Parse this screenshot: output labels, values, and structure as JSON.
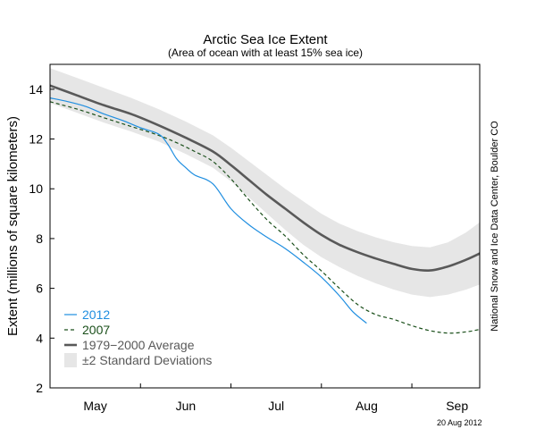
{
  "chart_data": {
    "type": "line",
    "title": "Arctic Sea Ice Extent",
    "subtitle": "(Area of ocean with at least 15% sea ice)",
    "ylabel": "Extent (millions of square kilometers)",
    "xlabel": "",
    "ylim": [
      2,
      15
    ],
    "yticks": [
      2,
      4,
      6,
      8,
      10,
      12,
      14
    ],
    "xlim": [
      0,
      4.75
    ],
    "xticks": [
      {
        "label": "May",
        "x": 0.5
      },
      {
        "label": "Jun",
        "x": 1.5
      },
      {
        "label": "Jul",
        "x": 2.5
      },
      {
        "label": "Aug",
        "x": 3.5
      },
      {
        "label": "Sep",
        "x": 4.5
      }
    ],
    "series": [
      {
        "name": "2012",
        "color": "#1f8ee0",
        "style": "solid",
        "x": [
          0.0,
          0.2,
          0.4,
          0.6,
          0.8,
          1.0,
          1.2,
          1.3,
          1.4,
          1.5,
          1.6,
          1.8,
          2.0,
          2.2,
          2.4,
          2.6,
          2.8,
          3.0,
          3.2,
          3.35,
          3.5
        ],
        "y": [
          13.65,
          13.5,
          13.3,
          13.0,
          12.75,
          12.45,
          12.2,
          11.8,
          11.2,
          10.85,
          10.55,
          10.2,
          9.2,
          8.55,
          8.05,
          7.6,
          7.05,
          6.45,
          5.7,
          5.05,
          4.6
        ]
      },
      {
        "name": "2007",
        "color": "#1a4f1a",
        "style": "dashed",
        "x": [
          0.0,
          0.3,
          0.6,
          0.9,
          1.2,
          1.4,
          1.6,
          1.8,
          2.0,
          2.2,
          2.4,
          2.6,
          2.8,
          3.0,
          3.2,
          3.4,
          3.6,
          3.8,
          4.0,
          4.2,
          4.4,
          4.6,
          4.75
        ],
        "y": [
          13.5,
          13.2,
          12.85,
          12.5,
          12.15,
          11.85,
          11.5,
          11.1,
          10.4,
          9.55,
          8.75,
          8.1,
          7.35,
          6.7,
          6.0,
          5.35,
          4.95,
          4.75,
          4.5,
          4.3,
          4.2,
          4.25,
          4.35
        ]
      },
      {
        "name": "1979−2000 Average",
        "color": "#595959",
        "style": "solid",
        "x": [
          0.0,
          0.3,
          0.6,
          0.9,
          1.2,
          1.5,
          1.8,
          2.0,
          2.2,
          2.4,
          2.6,
          2.8,
          3.0,
          3.2,
          3.4,
          3.6,
          3.8,
          4.0,
          4.2,
          4.4,
          4.6,
          4.75
        ],
        "y": [
          14.15,
          13.75,
          13.35,
          13.0,
          12.55,
          12.05,
          11.5,
          10.95,
          10.35,
          9.75,
          9.2,
          8.65,
          8.15,
          7.75,
          7.45,
          7.2,
          6.98,
          6.78,
          6.72,
          6.88,
          7.15,
          7.4
        ]
      }
    ],
    "band": {
      "name": "±2 Standard Deviations",
      "color": "#e6e6e6",
      "x": [
        0.0,
        0.3,
        0.6,
        0.9,
        1.2,
        1.5,
        1.8,
        2.0,
        2.2,
        2.4,
        2.6,
        2.8,
        3.0,
        3.2,
        3.4,
        3.6,
        3.8,
        4.0,
        4.2,
        4.4,
        4.6,
        4.75
      ],
      "upper": [
        14.85,
        14.45,
        14.05,
        13.65,
        13.2,
        12.7,
        12.15,
        11.65,
        11.1,
        10.55,
        10.0,
        9.5,
        9.0,
        8.6,
        8.3,
        8.05,
        7.85,
        7.7,
        7.65,
        7.85,
        8.25,
        8.65
      ],
      "lower": [
        13.45,
        13.05,
        12.65,
        12.3,
        11.9,
        11.4,
        10.85,
        10.3,
        9.65,
        9.0,
        8.35,
        7.75,
        7.25,
        6.85,
        6.5,
        6.2,
        5.95,
        5.75,
        5.65,
        5.75,
        5.95,
        6.15
      ]
    },
    "legend": {
      "placement": "bottom-left",
      "entries": [
        "2012",
        "2007",
        "1979−2000 Average",
        "±2 Standard Deviations"
      ]
    },
    "grid": false,
    "credit": "National Snow and Ice Data Center, Boulder CO",
    "date_stamp": "20 Aug 2012"
  }
}
